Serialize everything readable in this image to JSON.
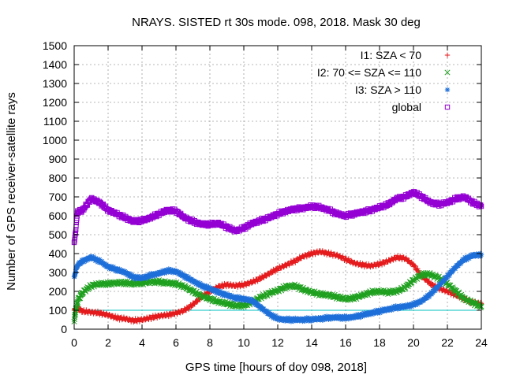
{
  "chart_data": {
    "type": "scatter",
    "title": "NRAYS. SISTED rt 30s mode. 098, 2018. Mask 30 deg",
    "xlabel": "GPS time [hours of doy 098, 2018]",
    "ylabel": "Number of GPS receiver-satellite rays",
    "xlim": [
      0,
      24
    ],
    "ylim": [
      0,
      1500
    ],
    "xticks": [
      0,
      2,
      4,
      6,
      8,
      10,
      12,
      14,
      16,
      18,
      20,
      22,
      24
    ],
    "yticks": [
      0,
      100,
      200,
      300,
      400,
      500,
      600,
      700,
      800,
      900,
      1000,
      1100,
      1200,
      1300,
      1400,
      1500
    ],
    "grid": true,
    "legend_position": "top-right",
    "reference_line": {
      "y": 100,
      "color": "#00c0c0"
    },
    "series": [
      {
        "name": "I1: SZA < 70",
        "marker": "+",
        "color": "#e41a1c",
        "x": [
          0,
          0.2,
          0.5,
          1,
          1.5,
          2,
          2.5,
          3,
          3.5,
          4,
          4.5,
          5,
          5.5,
          6,
          6.5,
          7,
          7.5,
          8,
          8.5,
          9,
          9.5,
          10,
          10.5,
          11,
          11.5,
          12,
          12.5,
          13,
          13.5,
          14,
          14.5,
          15,
          15.5,
          16,
          16.5,
          17,
          17.5,
          18,
          18.5,
          19,
          19.5,
          20,
          20.5,
          21,
          21.5,
          22,
          22.5,
          23,
          23.5,
          24
        ],
        "y": [
          100,
          110,
          95,
          90,
          85,
          75,
          60,
          55,
          45,
          50,
          60,
          70,
          75,
          85,
          100,
          130,
          170,
          200,
          225,
          235,
          230,
          235,
          250,
          270,
          295,
          320,
          340,
          360,
          385,
          400,
          410,
          400,
          390,
          370,
          350,
          340,
          335,
          345,
          360,
          380,
          375,
          340,
          280,
          240,
          215,
          200,
          180,
          160,
          140,
          135
        ]
      },
      {
        "name": "I2: 70 <= SZA <= 110",
        "marker": "x",
        "color": "#1fa01f",
        "x": [
          0,
          0.2,
          0.5,
          1,
          1.5,
          2,
          2.5,
          3,
          3.5,
          4,
          4.5,
          5,
          5.5,
          6,
          6.5,
          7,
          7.5,
          8,
          8.5,
          9,
          9.5,
          10,
          10.5,
          11,
          11.5,
          12,
          12.5,
          13,
          13.5,
          14,
          14.5,
          15,
          15.5,
          16,
          16.5,
          17,
          17.5,
          18,
          18.5,
          19,
          19.5,
          20,
          20.5,
          21,
          21.5,
          22,
          22.5,
          23,
          23.5,
          24
        ],
        "y": [
          50,
          150,
          195,
          230,
          240,
          240,
          245,
          245,
          240,
          245,
          250,
          250,
          245,
          240,
          225,
          200,
          175,
          160,
          145,
          135,
          125,
          125,
          145,
          170,
          190,
          205,
          225,
          230,
          210,
          195,
          185,
          180,
          170,
          160,
          165,
          180,
          195,
          200,
          195,
          200,
          220,
          260,
          290,
          290,
          270,
          240,
          200,
          160,
          140,
          120
        ]
      },
      {
        "name": "I3: SZA > 110",
        "marker": "*",
        "color": "#1e6fd9",
        "x": [
          0,
          0.2,
          0.5,
          1,
          1.5,
          2,
          2.5,
          3,
          3.5,
          4,
          4.5,
          5,
          5.5,
          6,
          6.5,
          7,
          7.5,
          8,
          8.5,
          9,
          9.5,
          10,
          10.5,
          11,
          11.5,
          12,
          12.5,
          13,
          13.5,
          14,
          14.5,
          15,
          15.5,
          16,
          16.5,
          17,
          17.5,
          18,
          18.5,
          19,
          19.5,
          20,
          20.5,
          21,
          21.5,
          22,
          22.5,
          23,
          23.5,
          24
        ],
        "y": [
          280,
          340,
          360,
          380,
          360,
          330,
          315,
          300,
          275,
          270,
          285,
          295,
          310,
          305,
          280,
          255,
          230,
          215,
          195,
          180,
          165,
          160,
          150,
          115,
          80,
          55,
          50,
          50,
          50,
          52,
          55,
          60,
          62,
          60,
          65,
          75,
          85,
          95,
          105,
          115,
          120,
          130,
          150,
          185,
          230,
          280,
          330,
          370,
          390,
          395
        ]
      },
      {
        "name": "global",
        "marker": "square",
        "color": "#9400d3",
        "x": [
          0,
          0.2,
          0.5,
          1,
          1.5,
          2,
          2.5,
          3,
          3.5,
          4,
          4.5,
          5,
          5.5,
          6,
          6.5,
          7,
          7.5,
          8,
          8.5,
          9,
          9.5,
          10,
          10.5,
          11,
          11.5,
          12,
          12.5,
          13,
          13.5,
          14,
          14.5,
          15,
          15.5,
          16,
          16.5,
          17,
          17.5,
          18,
          18.5,
          19,
          19.5,
          20,
          20.5,
          21,
          21.5,
          22,
          22.5,
          23,
          23.5,
          24
        ],
        "y": [
          450,
          620,
          630,
          690,
          670,
          630,
          610,
          590,
          570,
          575,
          590,
          610,
          630,
          625,
          590,
          570,
          555,
          555,
          560,
          540,
          520,
          535,
          560,
          575,
          590,
          610,
          625,
          635,
          640,
          650,
          645,
          630,
          610,
          600,
          610,
          620,
          630,
          645,
          660,
          690,
          700,
          725,
          700,
          670,
          660,
          670,
          690,
          700,
          670,
          650
        ]
      }
    ]
  }
}
